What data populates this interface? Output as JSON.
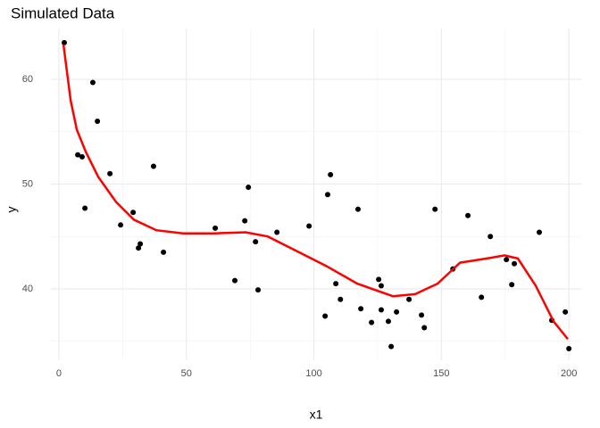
{
  "chart_data": {
    "type": "scatter",
    "title": "Simulated Data",
    "x_label": "x1",
    "y_label": "y",
    "xlim": [
      -3.15,
      205.2
    ],
    "ylim": [
      33.19,
      64.85
    ],
    "xticks": [
      0,
      50,
      100,
      150,
      200
    ],
    "yticks": [
      40,
      50,
      60
    ],
    "minor_xticks": [
      25,
      75,
      125,
      175
    ],
    "minor_yticks": [
      35,
      45,
      55
    ],
    "grid": true,
    "series": [
      {
        "color": "#000000",
        "x": [
          2.1,
          13.3,
          15.1,
          7.4,
          9.1,
          20.0,
          10.2,
          29.1,
          24.2,
          37.1,
          31.9,
          31.2,
          41.0,
          61.3,
          72.9,
          74.3,
          77.1,
          78.1,
          69.0,
          85.5,
          98.1,
          105.4,
          106.5,
          108.6,
          110.4,
          104.4,
          117.3,
          118.4,
          125.4,
          126.4,
          126.4,
          122.6,
          129.2,
          132.4,
          130.3,
          137.3,
          142.2,
          143.3,
          147.5,
          154.5,
          160.4,
          165.7,
          169.2,
          175.5,
          177.6,
          178.6,
          188.4,
          193.3,
          198.6,
          200.0
        ],
        "values": [
          63.5,
          59.7,
          56.0,
          52.8,
          52.6,
          51.0,
          47.7,
          47.3,
          46.1,
          51.7,
          44.3,
          43.9,
          43.5,
          45.8,
          46.5,
          49.7,
          44.5,
          39.9,
          40.8,
          45.4,
          46.0,
          49.0,
          50.9,
          40.5,
          39.0,
          37.4,
          47.6,
          38.1,
          40.9,
          40.3,
          38.0,
          36.8,
          36.9,
          37.8,
          34.5,
          39.0,
          37.5,
          36.3,
          47.6,
          41.9,
          47.0,
          39.2,
          45.0,
          42.8,
          40.4,
          42.4,
          45.4,
          37.0,
          37.8,
          34.3
        ]
      },
      {
        "color": "#ff0000",
        "line": true,
        "x": [
          1.8,
          4.6,
          7.0,
          10.5,
          15.4,
          22.4,
          29.4,
          38.2,
          48.7,
          60.9,
          73.2,
          81.9,
          92.5,
          104.7,
          117.0,
          131.0,
          139.7,
          148.5,
          157.3,
          167.8,
          174.8,
          180.0,
          187.0,
          194.0,
          199.6
        ],
        "values": [
          63.3,
          58.0,
          55.2,
          53.1,
          50.7,
          48.3,
          46.6,
          45.6,
          45.3,
          45.3,
          45.4,
          45.0,
          43.7,
          42.2,
          40.5,
          39.3,
          39.5,
          40.5,
          42.5,
          42.9,
          43.2,
          42.9,
          40.3,
          36.9,
          35.2
        ]
      }
    ]
  }
}
